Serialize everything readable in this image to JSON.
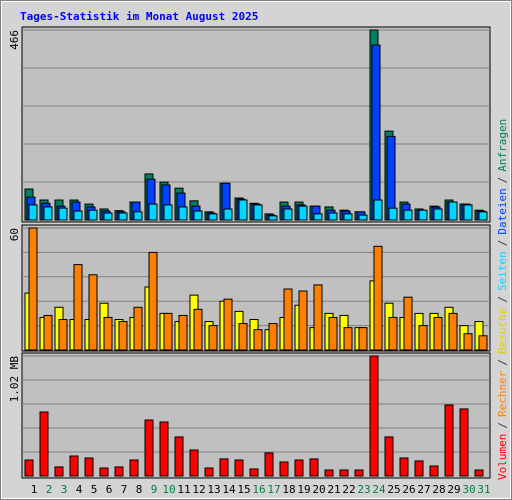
{
  "title": "Tages-Statistik im Monat August 2025",
  "legend_separator": "/",
  "chart_data": [
    {
      "type": "bar",
      "series": [
        {
          "name": "Anfragen",
          "color": "#008060",
          "values": [
            76,
            49,
            49,
            49,
            39,
            27,
            23,
            44,
            113,
            93,
            78,
            47,
            20,
            90,
            54,
            41,
            15,
            44,
            44,
            34,
            32,
            24,
            20,
            466,
            218,
            44,
            27,
            34,
            49,
            39,
            24
          ]
        },
        {
          "name": "Dateien",
          "color": "#0040ff",
          "values": [
            56,
            41,
            34,
            44,
            32,
            22,
            20,
            44,
            100,
            86,
            66,
            34,
            17,
            90,
            51,
            39,
            12,
            34,
            37,
            34,
            24,
            22,
            20,
            429,
            205,
            39,
            24,
            32,
            44,
            39,
            22
          ]
        },
        {
          "name": "Seiten",
          "color": "#00d8ff",
          "values": [
            37,
            32,
            29,
            22,
            24,
            17,
            17,
            20,
            39,
            37,
            32,
            22,
            15,
            27,
            49,
            37,
            10,
            27,
            34,
            15,
            17,
            15,
            12,
            49,
            29,
            24,
            24,
            27,
            44,
            37,
            20
          ]
        }
      ],
      "ylim": [
        0,
        466
      ],
      "yticks": [
        466
      ]
    },
    {
      "type": "bar",
      "series": [
        {
          "name": "Besuche",
          "color": "#ffff00",
          "values": [
            28,
            16,
            21,
            15,
            15,
            23,
            15,
            16,
            31,
            18,
            14,
            27,
            14,
            24,
            19,
            15,
            10,
            16,
            22,
            11,
            18,
            17,
            11,
            34,
            23,
            16,
            18,
            18,
            21,
            12,
            14
          ]
        },
        {
          "name": "Rechner",
          "color": "#ff8000",
          "values": [
            60,
            17,
            15,
            42,
            37,
            16,
            14,
            21,
            48,
            18,
            17,
            20,
            12,
            25,
            13,
            10,
            13,
            30,
            29,
            32,
            16,
            11,
            11,
            51,
            16,
            26,
            12,
            16,
            18,
            8,
            7
          ]
        }
      ],
      "ylim": [
        0,
        60
      ],
      "yticks": [
        60
      ]
    },
    {
      "type": "bar",
      "series": [
        {
          "name": "Volumen",
          "color": "#ff0000",
          "values": [
            0.136,
            0.544,
            0.077,
            0.17,
            0.153,
            0.068,
            0.077,
            0.136,
            0.476,
            0.459,
            0.332,
            0.221,
            0.068,
            0.145,
            0.136,
            0.06,
            0.196,
            0.119,
            0.136,
            0.145,
            0.051,
            0.051,
            0.051,
            1.02,
            0.332,
            0.153,
            0.128,
            0.085,
            0.603,
            0.57,
            0.051
          ]
        }
      ],
      "ylim": [
        0,
        1.02
      ],
      "yticks": [
        {
          "value": 1.02,
          "label": "1.02 MB"
        }
      ],
      "categories": [
        "1",
        "2",
        "3",
        "4",
        "5",
        "6",
        "7",
        "8",
        "9",
        "10",
        "11",
        "12",
        "13",
        "14",
        "15",
        "16",
        "17",
        "18",
        "19",
        "20",
        "21",
        "22",
        "23",
        "24",
        "25",
        "26",
        "27",
        "28",
        "29",
        "30",
        "31"
      ],
      "category_colors": [
        "#000000",
        "#008040",
        "#008040",
        "#000000",
        "#000000",
        "#000000",
        "#000000",
        "#000000",
        "#008040",
        "#008040",
        "#000000",
        "#000000",
        "#000000",
        "#000000",
        "#000000",
        "#008040",
        "#008040",
        "#000000",
        "#000000",
        "#000000",
        "#000000",
        "#000000",
        "#008040",
        "#008040",
        "#000000",
        "#000000",
        "#000000",
        "#000000",
        "#000000",
        "#008040",
        "#008040"
      ]
    }
  ]
}
